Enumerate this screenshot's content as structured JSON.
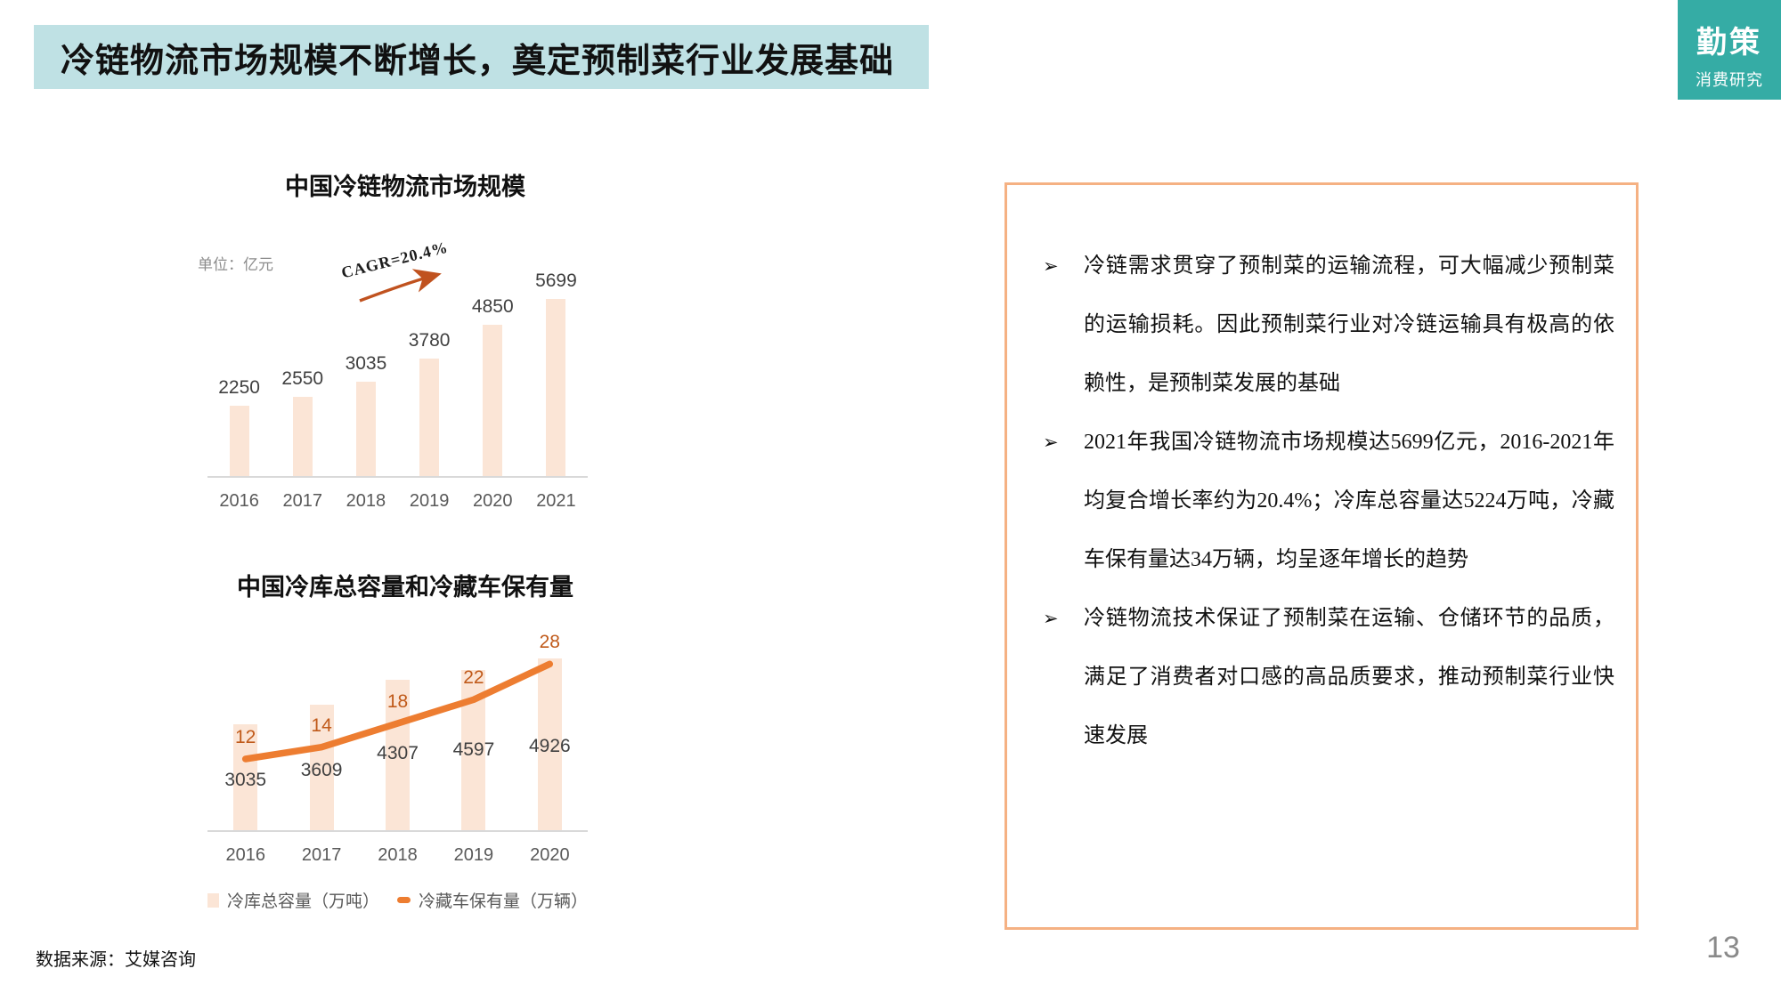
{
  "header": {
    "title": "冷链物流市场规模不断增长，奠定预制菜行业发展基础"
  },
  "logo": {
    "line1": "勤策",
    "line2": "消费研究"
  },
  "chart_data": [
    {
      "type": "bar",
      "title": "中国冷链物流市场规模",
      "unit_label": "单位：亿元",
      "annotation": "CAGR=20.4%",
      "categories": [
        "2016",
        "2017",
        "2018",
        "2019",
        "2020",
        "2021"
      ],
      "values": [
        2250,
        2550,
        3035,
        3780,
        4850,
        5699
      ],
      "ylim": [
        0,
        5800
      ],
      "grid": false,
      "value_labels": true,
      "bar_color": "#fbe5d6"
    },
    {
      "type": "bar",
      "title": "中国冷库总容量和冷藏车保有量",
      "categories": [
        "2016",
        "2017",
        "2018",
        "2019",
        "2020"
      ],
      "series": [
        {
          "name": "冷库总容量（万吨）",
          "type": "bar",
          "values": [
            3035,
            3609,
            4307,
            4597,
            4926
          ]
        },
        {
          "name": "冷藏车保有量（万辆）",
          "type": "line",
          "values": [
            12,
            14,
            18,
            22,
            28
          ]
        }
      ],
      "ylim": [
        0,
        5100
      ],
      "y2lim": [
        0,
        30
      ],
      "grid": false,
      "legend_position": "bottom",
      "bar_label_center_above_axis": [
        57,
        68,
        87,
        91,
        95
      ],
      "bar_color": "#fbe5d6",
      "line_color": "#ed7d31"
    }
  ],
  "panel": {
    "bullet_marker": "➢",
    "bullets": [
      "冷链需求贯穿了预制菜的运输流程，可大幅减少预制菜的运输损耗。因此预制菜行业对冷链运输具有极高的依赖性，是预制菜发展的基础",
      "2021年我国冷链物流市场规模达5699亿元，2016-2021年均复合增长率约为20.4%；冷库总容量达5224万吨，冷藏车保有量达34万辆，均呈逐年增长的趋势",
      "冷链物流技术保证了预制菜在运输、仓储环节的品质，满足了消费者对口感的高品质要求，推动预制菜行业快速发展"
    ]
  },
  "footer": {
    "source": "数据来源：艾媒咨询",
    "page": "13"
  },
  "colors": {
    "header_bg": "#bfe1e4",
    "logo_bg": "#35aca5",
    "bar_fill": "#fbe5d6",
    "line_orange": "#ed7d31",
    "arrow_brown": "#c0521f",
    "box_border": "#f5b183",
    "axis_gray": "#d9d9d9",
    "value_label_gray": "#404040"
  }
}
